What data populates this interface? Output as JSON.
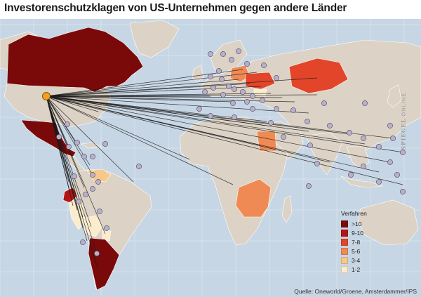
{
  "title": "Investorenschutzklagen von US-Unternehmen gegen andere Länder",
  "legend": {
    "title": "Verfahren",
    "items": [
      {
        "label": ">10",
        "color": "#7a0a0a"
      },
      {
        "label": "9-10",
        "color": "#b31515"
      },
      {
        "label": "7-8",
        "color": "#e2452a"
      },
      {
        "label": "5-6",
        "color": "#f08a54"
      },
      {
        "label": "3-4",
        "color": "#f6c98a"
      },
      {
        "label": "1-2",
        "color": "#fbeccc"
      }
    ]
  },
  "source": "Quelle: Oneworld/Groene,  Amsterdammer/IPS",
  "watermark": {
    "brand": "SPIEGEL",
    "suffix": "ONLINE"
  },
  "colors": {
    "ocean": "#c7d6e4",
    "land": "#dcd2c5",
    "graticule": "#ffffff",
    "origin": "#f2a01c",
    "marker": "#b8b0c8",
    "line": "#1a1a1a"
  }
}
